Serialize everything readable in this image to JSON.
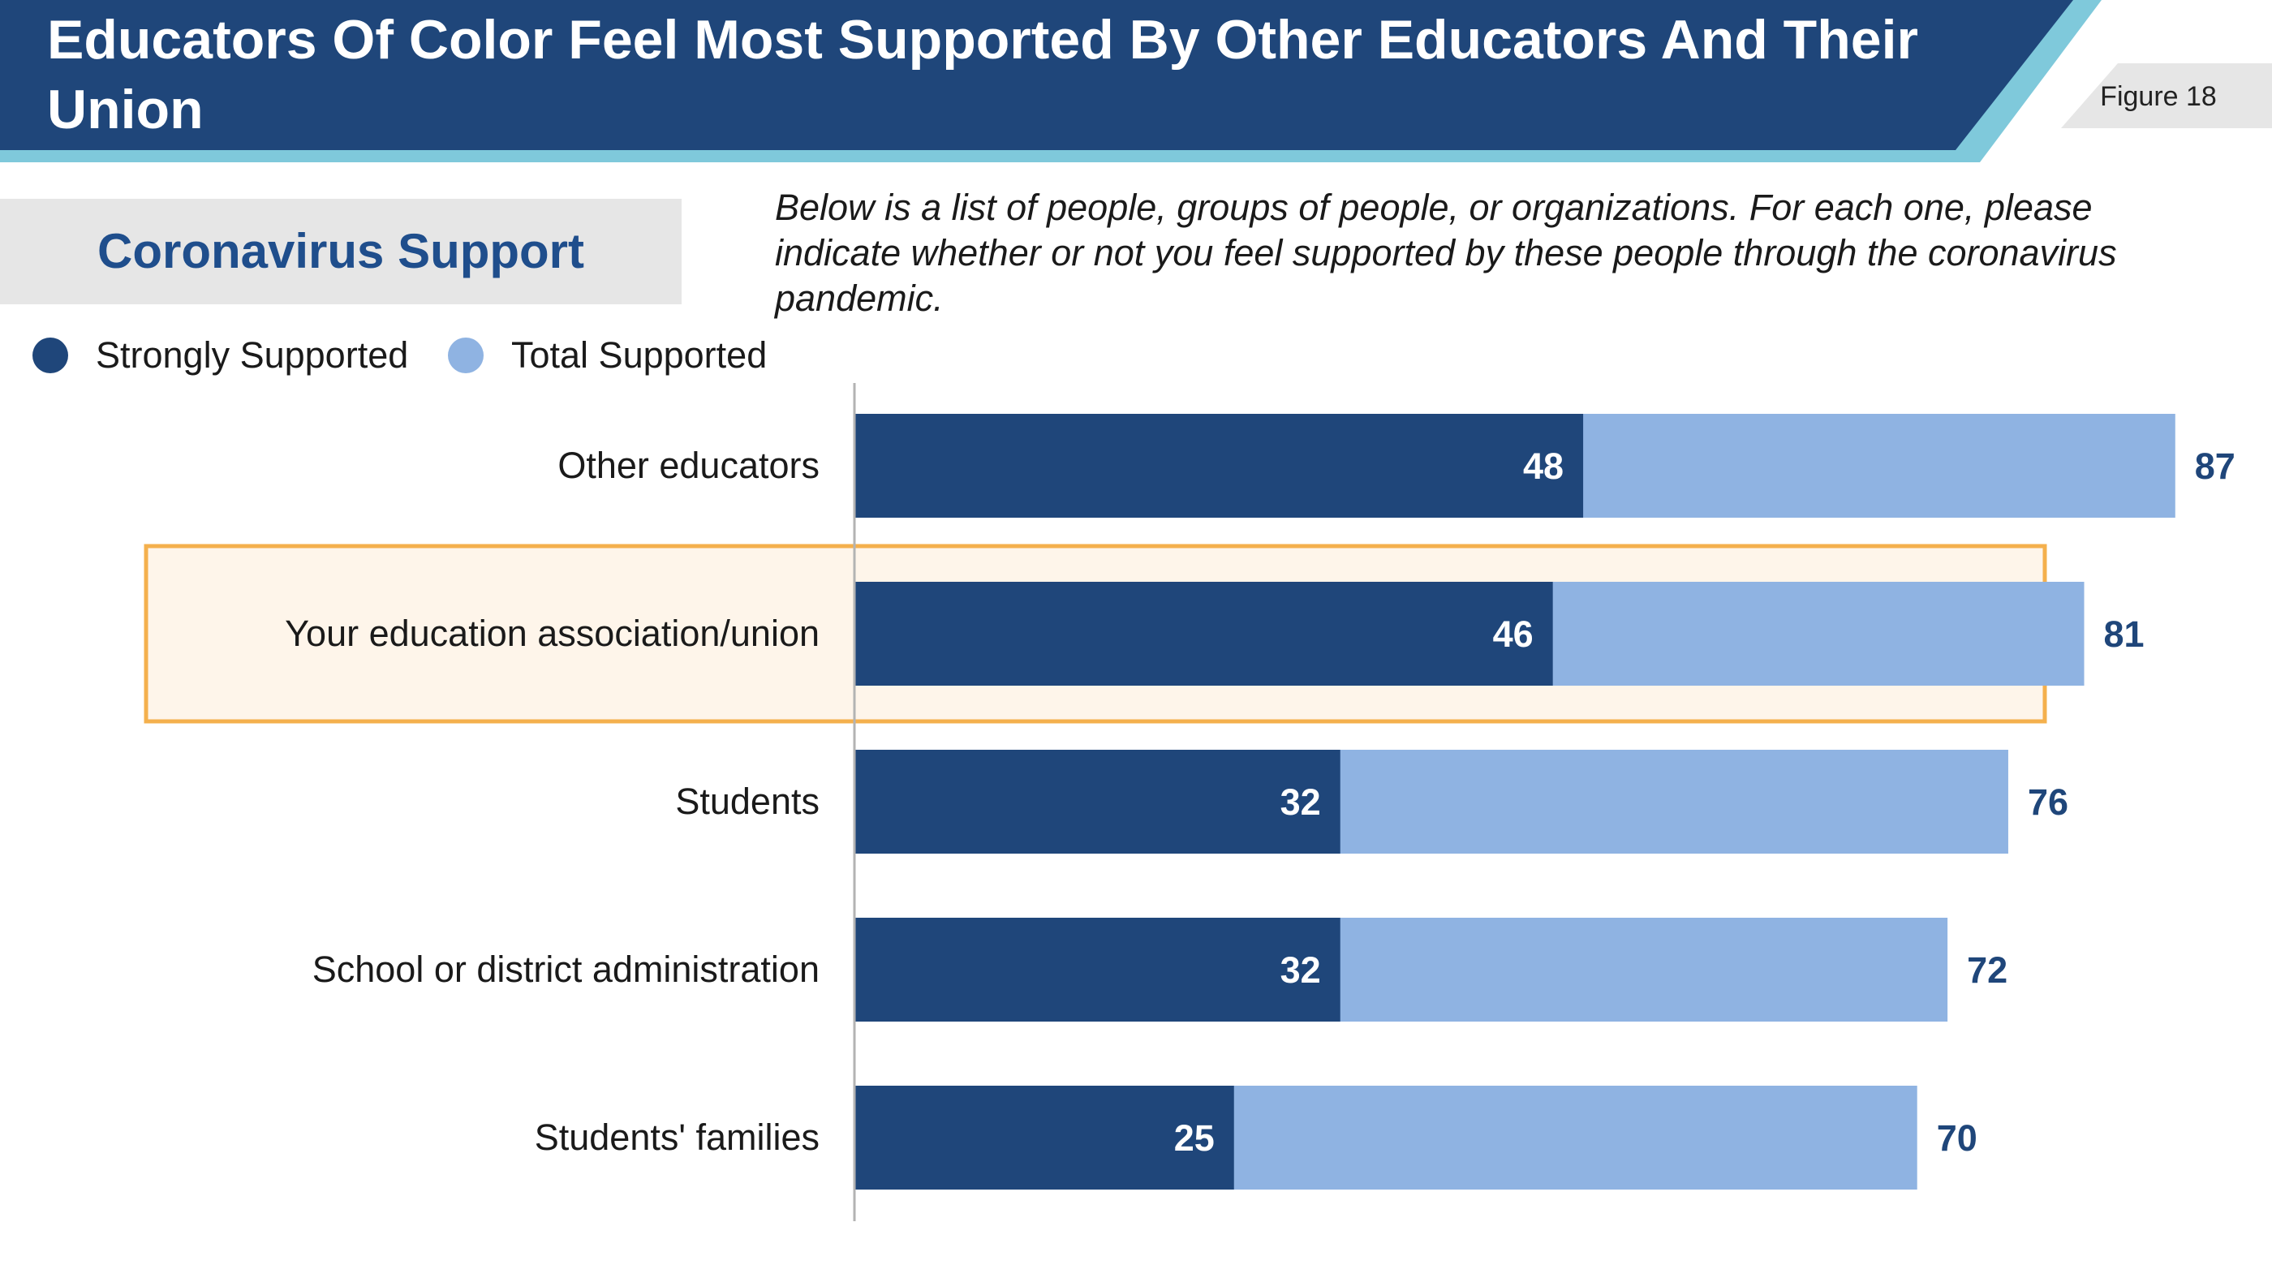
{
  "header": {
    "title": "Educators Of Color Feel Most Supported By Other Educators And Their Union",
    "figure_label": "Figure 18"
  },
  "section": {
    "title": "Coronavirus Support"
  },
  "question": "Below is a list of people, groups of people, or organizations. For each one, please indicate whether or not you feel supported by these people through the coronavirus pandemic.",
  "colors": {
    "header_navy": "#1f467a",
    "header_accent": "#7fc9db",
    "strong": "#1f467a",
    "total": "#8fb3e2",
    "highlight_fill": "#fef5ea",
    "highlight_border": "#f4b04d",
    "value_label_outer": "#1f467a",
    "axis": "#b3b3b3"
  },
  "chart_data": {
    "type": "bar",
    "orientation": "horizontal",
    "categories": [
      "Other educators",
      "Your education association/union",
      "Students",
      "School or district administration",
      "Students' families"
    ],
    "series": [
      {
        "name": "Strongly Supported",
        "values": [
          48,
          46,
          32,
          32,
          25
        ]
      },
      {
        "name": "Total Supported",
        "values": [
          87,
          81,
          76,
          72,
          70
        ]
      }
    ],
    "highlight_category": "Your education association/union",
    "xlim": [
      0,
      100
    ],
    "legend_position": "top-left",
    "grid": false
  }
}
